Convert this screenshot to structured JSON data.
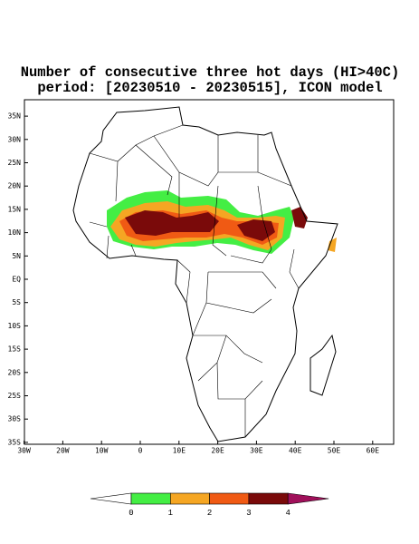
{
  "header": {
    "title": [
      "Number of consecutive three hot days (HI>40C)",
      "period: [20230510 - 20230515], ICON model"
    ]
  },
  "map": {
    "lat_ticks": [
      {
        "value": 35,
        "label": "35N"
      },
      {
        "value": 30,
        "label": "30N"
      },
      {
        "value": 25,
        "label": "25N"
      },
      {
        "value": 20,
        "label": "20N"
      },
      {
        "value": 15,
        "label": "15N"
      },
      {
        "value": 10,
        "label": "10N"
      },
      {
        "value": 5,
        "label": "5N"
      },
      {
        "value": 0,
        "label": "EQ"
      },
      {
        "value": -5,
        "label": "5S"
      },
      {
        "value": -10,
        "label": "10S"
      },
      {
        "value": -15,
        "label": "15S"
      },
      {
        "value": -20,
        "label": "20S"
      },
      {
        "value": -25,
        "label": "25S"
      },
      {
        "value": -30,
        "label": "30S"
      },
      {
        "value": -35,
        "label": "35S"
      }
    ],
    "lon_ticks": [
      {
        "value": -30,
        "label": "30W"
      },
      {
        "value": -20,
        "label": "20W"
      },
      {
        "value": -10,
        "label": "10W"
      },
      {
        "value": 0,
        "label": "0"
      },
      {
        "value": 10,
        "label": "10E"
      },
      {
        "value": 20,
        "label": "20E"
      },
      {
        "value": 30,
        "label": "30E"
      },
      {
        "value": 40,
        "label": "40E"
      },
      {
        "value": 50,
        "label": "50E"
      },
      {
        "value": 60,
        "label": "60E"
      }
    ]
  },
  "colorbar": {
    "labels": [
      "0",
      "1",
      "2",
      "3",
      "4"
    ],
    "colors": [
      "#ffffff",
      "#44ee44",
      "#f5a623",
      "#f05a14",
      "#7a0a0a",
      "#a0105a"
    ]
  }
}
